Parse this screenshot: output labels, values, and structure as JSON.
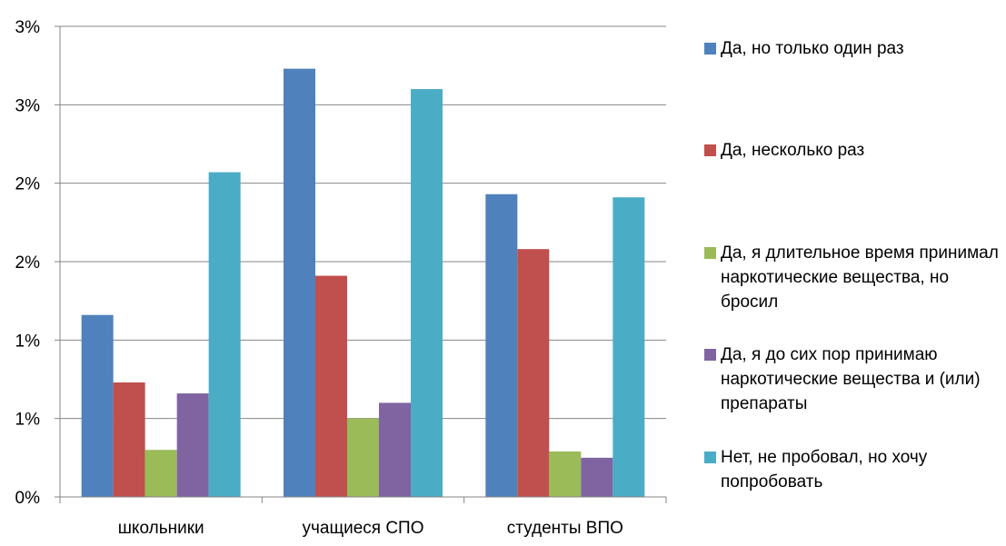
{
  "chart_data": {
    "type": "bar",
    "categories": [
      "школьники",
      "учащиеся СПО",
      "студенты ВПО"
    ],
    "y_ticks": [
      "0%",
      "1%",
      "1%",
      "2%",
      "2%",
      "3%",
      "3%"
    ],
    "ylim": [
      0,
      3.0
    ],
    "grid": true,
    "legend_position": "right",
    "series": [
      {
        "name": "Да, но только один раз",
        "color": "#4F81BD",
        "values": [
          1.16,
          2.73,
          1.93
        ]
      },
      {
        "name": "Да, несколько раз",
        "color": "#C0504D",
        "values": [
          0.73,
          1.41,
          1.58
        ]
      },
      {
        "name": "Да, я длительное время принимал наркотические вещества, но бросил",
        "color": "#9BBB59",
        "values": [
          0.3,
          0.5,
          0.29
        ]
      },
      {
        "name": "Да, я до сих пор принимаю наркотические вещества и (или) препараты",
        "color": "#8064A2",
        "values": [
          0.66,
          0.6,
          0.25
        ]
      },
      {
        "name": "Нет, не пробовал, но хочу попробовать",
        "color": "#4BACC6",
        "values": [
          2.07,
          2.6,
          1.91
        ]
      }
    ]
  }
}
